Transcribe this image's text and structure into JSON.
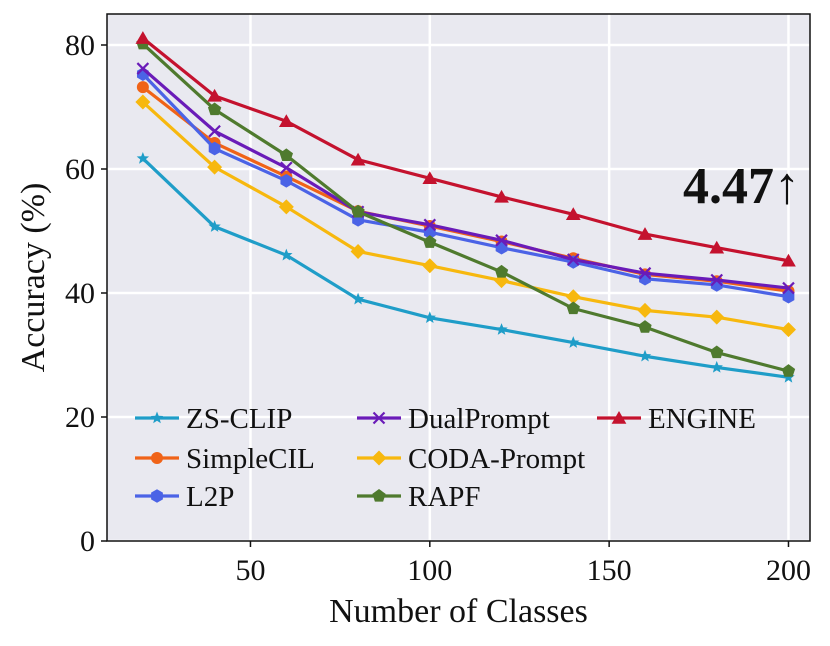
{
  "chart_data": {
    "type": "line",
    "title": "",
    "xlabel": "Number of Classes",
    "ylabel": "Accuracy (%)",
    "x": [
      20,
      40,
      60,
      80,
      100,
      120,
      140,
      160,
      180,
      200
    ],
    "xlim": [
      10,
      206
    ],
    "ylim": [
      0,
      85
    ],
    "xticks": [
      "50",
      "100",
      "150",
      "200"
    ],
    "xtick_values": [
      50,
      100,
      150,
      200
    ],
    "yticks": [
      "0",
      "20",
      "40",
      "60",
      "80"
    ],
    "ytick_values": [
      0,
      20,
      40,
      60,
      80
    ],
    "grid": true,
    "background": "#e9e9f0",
    "legend_position": "lower-left",
    "annotation": "4.47↑",
    "series": [
      {
        "name": "ZS-CLIP",
        "color": "#1f9dc8",
        "marker": "star",
        "values": [
          61.7,
          50.7,
          46.1,
          39.0,
          36.0,
          34.1,
          32.0,
          29.8,
          28.0,
          26.4
        ]
      },
      {
        "name": "SimpleCIL",
        "color": "#f06318",
        "marker": "circle",
        "values": [
          73.2,
          64.2,
          58.8,
          53.2,
          50.8,
          48.3,
          45.6,
          43.0,
          41.9,
          40.3
        ]
      },
      {
        "name": "L2P",
        "color": "#4b63e6",
        "marker": "hexagon",
        "values": [
          75.3,
          63.3,
          58.1,
          51.8,
          49.8,
          47.3,
          45.0,
          42.3,
          41.3,
          39.4
        ]
      },
      {
        "name": "DualPrompt",
        "color": "#6a1bb8",
        "marker": "x",
        "values": [
          76.2,
          66.1,
          60.2,
          53.1,
          51.0,
          48.5,
          45.4,
          43.2,
          42.1,
          40.8
        ]
      },
      {
        "name": "CODA-Prompt",
        "color": "#f7b80e",
        "marker": "diamond",
        "values": [
          70.8,
          60.3,
          53.9,
          46.7,
          44.4,
          42.0,
          39.4,
          37.2,
          36.1,
          34.1
        ]
      },
      {
        "name": "RAPF",
        "color": "#4f7a2e",
        "marker": "pentagon",
        "values": [
          80.2,
          69.6,
          62.2,
          53.1,
          48.2,
          43.4,
          37.5,
          34.5,
          30.4,
          27.4
        ]
      },
      {
        "name": "ENGINE",
        "color": "#c4122e",
        "marker": "triangle",
        "values": [
          81.1,
          71.8,
          67.7,
          61.5,
          58.5,
          55.5,
          52.7,
          49.5,
          47.3,
          45.2
        ]
      }
    ]
  }
}
